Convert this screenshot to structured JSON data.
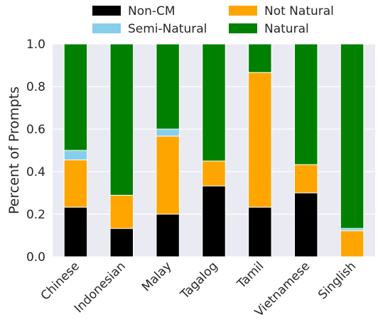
{
  "chart_data": {
    "type": "bar",
    "stacked": true,
    "categories": [
      "Chinese",
      "Indonesian",
      "Malay",
      "Tagalog",
      "Tamil",
      "Vietnamese",
      "Singlish"
    ],
    "series": [
      {
        "name": "Non-CM",
        "color": "#000000",
        "values": [
          0.233,
          0.133,
          0.2,
          0.333,
          0.233,
          0.3,
          0.0
        ]
      },
      {
        "name": "Not Natural",
        "color": "#ffa500",
        "values": [
          0.222,
          0.156,
          0.367,
          0.117,
          0.633,
          0.133,
          0.122
        ]
      },
      {
        "name": "Semi-Natural",
        "color": "#87ceeb",
        "values": [
          0.045,
          0.0,
          0.033,
          0.0,
          0.0,
          0.0,
          0.011
        ]
      },
      {
        "name": "Natural",
        "color": "#008000",
        "values": [
          0.5,
          0.711,
          0.4,
          0.55,
          0.134,
          0.567,
          0.867
        ]
      }
    ],
    "ylabel": "Percent of Prompts",
    "xlabel": "",
    "ylim": [
      0,
      1.0
    ],
    "yticks": [
      "0.0",
      "0.2",
      "0.4",
      "0.6",
      "0.8",
      "1.0"
    ],
    "grid": true,
    "background_color": "#eaeaf2",
    "legend": {
      "placement": "top-center",
      "columns": 2
    }
  }
}
